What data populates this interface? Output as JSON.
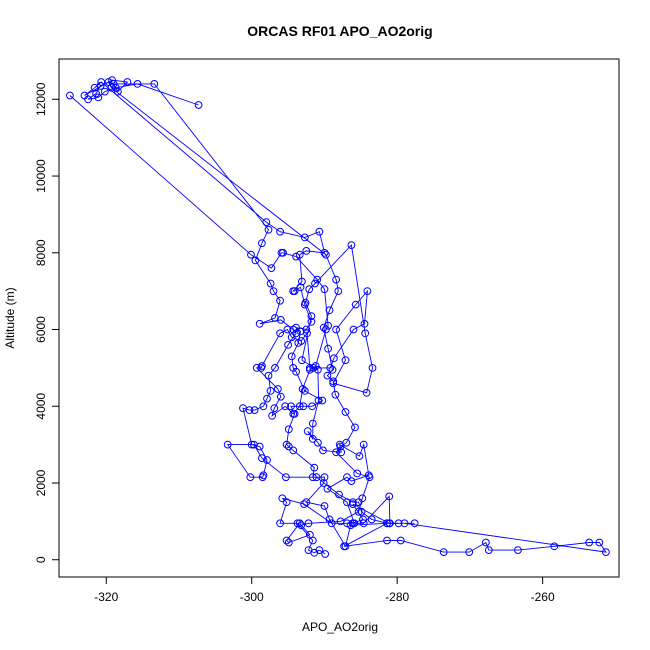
{
  "chart_data": {
    "type": "line",
    "title": "ORCAS RF01 APO_AO2orig",
    "xlabel": "APO_AO2orig",
    "ylabel": "Altitude (m)",
    "xlim": [
      -326.5,
      -249.5
    ],
    "ylim": [
      -450,
      13050
    ],
    "xticks": [
      -320,
      -300,
      -280,
      -260
    ],
    "yticks": [
      0,
      2000,
      4000,
      6000,
      8000,
      10000,
      12000
    ],
    "grid": false,
    "legend": "none",
    "color": "#0000ff",
    "marker": "open-circle",
    "series": [
      {
        "points": [
          [
            -289.9,
            150
          ],
          [
            -290.7,
            250
          ],
          [
            -291.4,
            180
          ],
          [
            -292.2,
            250
          ],
          [
            -291.6,
            500
          ],
          [
            -293.7,
            950
          ],
          [
            -296.1,
            950
          ],
          [
            -295.2,
            1500
          ],
          [
            -295.8,
            1600
          ],
          [
            -292.8,
            1450
          ],
          [
            -289.0,
            950
          ],
          [
            -286.9,
            950
          ],
          [
            -286.1,
            950
          ],
          [
            -284.7,
            1050
          ],
          [
            -286.1,
            1450
          ],
          [
            -281.1,
            950
          ],
          [
            -279.0,
            950
          ],
          [
            -251.3,
            200
          ],
          [
            -252.2,
            450
          ],
          [
            -253.6,
            450
          ],
          [
            -258.4,
            350
          ],
          [
            -263.4,
            250
          ],
          [
            -267.4,
            250
          ],
          [
            -267.8,
            450
          ],
          [
            -270.1,
            200
          ],
          [
            -273.6,
            200
          ],
          [
            -279.5,
            500
          ],
          [
            -281.4,
            500
          ],
          [
            -287.3,
            350
          ],
          [
            -281.4,
            950
          ],
          [
            -283.5,
            1050
          ],
          [
            -284.9,
            1250
          ],
          [
            -285.3,
            1500
          ],
          [
            -286.1,
            1500
          ],
          [
            -288.0,
            1700
          ],
          [
            -291.1,
            2150
          ],
          [
            -291.6,
            2150
          ],
          [
            -291.4,
            2400
          ],
          [
            -294.3,
            2850
          ],
          [
            -294.9,
            2950
          ],
          [
            -295.2,
            3000
          ],
          [
            -294.9,
            3400
          ],
          [
            -294.1,
            3800
          ],
          [
            -294.6,
            4000
          ],
          [
            -292.9,
            4000
          ],
          [
            -291.7,
            4000
          ],
          [
            -290.3,
            4150
          ],
          [
            -292.7,
            4400
          ],
          [
            -293.9,
            4900
          ],
          [
            -294.3,
            5000
          ],
          [
            -294.5,
            5300
          ],
          [
            -293.6,
            5650
          ],
          [
            -293.3,
            5950
          ],
          [
            -293.9,
            6050
          ],
          [
            -292.5,
            6000
          ],
          [
            -291.8,
            6200
          ],
          [
            -292.7,
            6650
          ],
          [
            -293.3,
            7100
          ],
          [
            -294.1,
            7000
          ],
          [
            -294.3,
            7000
          ],
          [
            -293.1,
            7250
          ],
          [
            -293.4,
            7950
          ],
          [
            -292.5,
            8050
          ],
          [
            -290.0,
            8000
          ],
          [
            -290.7,
            8550
          ],
          [
            -292.7,
            8400
          ],
          [
            -296.1,
            8550
          ],
          [
            -298.0,
            8800
          ],
          [
            -320.7,
            12450
          ],
          [
            -321.6,
            12300
          ],
          [
            -323.0,
            12100
          ],
          [
            -319.2,
            12500
          ],
          [
            -317.1,
            12450
          ],
          [
            -318.4,
            12200
          ],
          [
            -319.0,
            12400
          ],
          [
            -313.4,
            12400
          ],
          [
            -297.7,
            8600
          ],
          [
            -298.6,
            8250
          ],
          [
            -299.5,
            7800
          ],
          [
            -297.4,
            7200
          ],
          [
            -297.0,
            7000
          ],
          [
            -296.1,
            6750
          ],
          [
            -296.8,
            6300
          ],
          [
            -298.9,
            6150
          ],
          [
            -296.0,
            6250
          ],
          [
            -294.3,
            6000
          ],
          [
            -293.9,
            5900
          ],
          [
            -295.0,
            5600
          ],
          [
            -296.8,
            5000
          ],
          [
            -297.7,
            4800
          ],
          [
            -297.4,
            4400
          ],
          [
            -297.9,
            4200
          ],
          [
            -298.4,
            4000
          ],
          [
            -299.6,
            3900
          ],
          [
            -300.3,
            3900
          ],
          [
            -301.2,
            3950
          ],
          [
            -300.0,
            3000
          ],
          [
            -298.9,
            2950
          ],
          [
            -297.9,
            2600
          ],
          [
            -298.4,
            2200
          ],
          [
            -298.5,
            2150
          ],
          [
            -300.2,
            2150
          ],
          [
            -303.3,
            3000
          ],
          [
            -299.7,
            3000
          ],
          [
            -298.6,
            2650
          ],
          [
            -295.3,
            2150
          ],
          [
            -290.0,
            2150
          ],
          [
            -290.1,
            2000
          ],
          [
            -292.5,
            1500
          ],
          [
            -290.0,
            1400
          ],
          [
            -289.3,
            1050
          ],
          [
            -287.1,
            350
          ],
          [
            -286.4,
            900
          ],
          [
            -281.4,
            950
          ],
          [
            -277.6,
            950
          ]
        ]
      },
      {
        "points": [
          [
            -325.0,
            12100
          ],
          [
            -300.1,
            7950
          ],
          [
            -297.3,
            7600
          ],
          [
            -295.9,
            8000
          ],
          [
            -295.7,
            8000
          ],
          [
            -293.9,
            7900
          ],
          [
            -291.0,
            7300
          ],
          [
            -290.0,
            7050
          ],
          [
            -289.5,
            6100
          ],
          [
            -289.8,
            6000
          ],
          [
            -291.2,
            5050
          ],
          [
            -291.5,
            5000
          ],
          [
            -292.0,
            4950
          ],
          [
            -293.0,
            4450
          ],
          [
            -293.4,
            4000
          ],
          [
            -294.3,
            3800
          ],
          [
            -295.4,
            4000
          ],
          [
            -297.2,
            3750
          ],
          [
            -296.9,
            3950
          ],
          [
            -296.0,
            4250
          ],
          [
            -296.4,
            4450
          ],
          [
            -299.3,
            5000
          ],
          [
            -298.7,
            5000
          ],
          [
            -298.6,
            5050
          ],
          [
            -296.1,
            5900
          ],
          [
            -295.1,
            6000
          ],
          [
            -294.5,
            5800
          ],
          [
            -293.2,
            5700
          ],
          [
            -292.4,
            5900
          ],
          [
            -292.0,
            5000
          ],
          [
            -289.2,
            5000
          ],
          [
            -288.7,
            5250
          ],
          [
            -286.0,
            6000
          ],
          [
            -284.5,
            6150
          ],
          [
            -284.1,
            7000
          ],
          [
            -285.7,
            6650
          ],
          [
            -288.4,
            6000
          ],
          [
            -287.1,
            5200
          ],
          [
            -288.8,
            4600
          ],
          [
            -284.2,
            4350
          ],
          [
            -283.4,
            5000
          ],
          [
            -284.4,
            5900
          ],
          [
            -286.3,
            8200
          ],
          [
            -291.3,
            7200
          ],
          [
            -292.1,
            7050
          ],
          [
            -292.6,
            6700
          ],
          [
            -291.8,
            6350
          ],
          [
            -293.1,
            5200
          ],
          [
            -290.9,
            4950
          ],
          [
            -290.8,
            4150
          ],
          [
            -291.6,
            3550
          ],
          [
            -291.6,
            3150
          ],
          [
            -292.3,
            3350
          ],
          [
            -290.9,
            3050
          ],
          [
            -290.2,
            2850
          ],
          [
            -287.7,
            2800
          ],
          [
            -287.9,
            3000
          ],
          [
            -285.2,
            2700
          ],
          [
            -284.6,
            3000
          ],
          [
            -283.9,
            2200
          ],
          [
            -286.3,
            2050
          ],
          [
            -286.9,
            2150
          ],
          [
            -289.6,
            1850
          ],
          [
            -286.9,
            1500
          ],
          [
            -285.9,
            950
          ],
          [
            -284.6,
            950
          ],
          [
            -281.1,
            1650
          ],
          [
            -281.0,
            950
          ],
          [
            -279.8,
            950
          ]
        ]
      },
      {
        "points": [
          [
            -307.3,
            11850
          ],
          [
            -315.7,
            12400
          ],
          [
            -318.7,
            12300
          ],
          [
            -320.2,
            12200
          ],
          [
            -321.1,
            12050
          ],
          [
            -322.5,
            12000
          ],
          [
            -321.4,
            12150
          ],
          [
            -320.8,
            12350
          ],
          [
            -319.7,
            12450
          ],
          [
            -319.3,
            12300
          ],
          [
            -289.8,
            7950
          ],
          [
            -288.4,
            7300
          ],
          [
            -288.1,
            7000
          ],
          [
            -289.3,
            6500
          ],
          [
            -290.1,
            6050
          ],
          [
            -289.5,
            5500
          ],
          [
            -288.9,
            4950
          ],
          [
            -289.6,
            4800
          ],
          [
            -288.8,
            4650
          ],
          [
            -288.5,
            4300
          ],
          [
            -287.1,
            3850
          ],
          [
            -285.8,
            3450
          ],
          [
            -287.0,
            3050
          ],
          [
            -287.8,
            2950
          ],
          [
            -288.4,
            2800
          ],
          [
            -285.5,
            2250
          ],
          [
            -283.8,
            2150
          ],
          [
            -284.8,
            1600
          ],
          [
            -285.3,
            1250
          ],
          [
            -287.8,
            1000
          ],
          [
            -292.2,
            950
          ],
          [
            -293.2,
            900
          ],
          [
            -292.0,
            650
          ],
          [
            -294.9,
            450
          ],
          [
            -295.2,
            500
          ],
          [
            -293.4,
            950
          ]
        ]
      }
    ]
  }
}
